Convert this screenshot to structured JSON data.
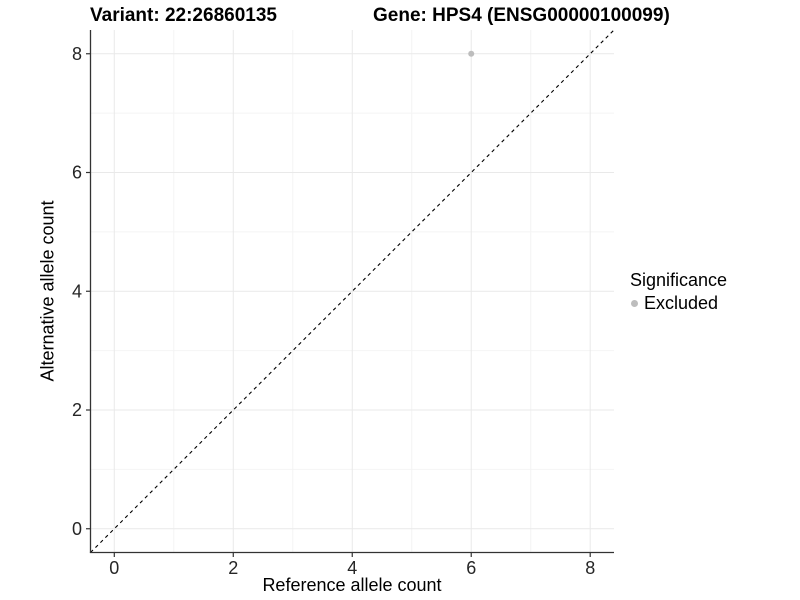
{
  "chart_data": {
    "type": "scatter",
    "titles": [
      "Variant: 22:26860135",
      "Gene: HPS4 (ENSG00000100099)"
    ],
    "xlabel": "Reference allele count",
    "ylabel": "Alternative allele count",
    "xlim": [
      -0.4,
      8.4
    ],
    "ylim": [
      -0.4,
      8.4
    ],
    "xticks": [
      0,
      2,
      4,
      6,
      8
    ],
    "yticks": [
      0,
      2,
      4,
      6,
      8
    ],
    "minor_xticks": [
      1,
      3,
      5,
      7
    ],
    "minor_yticks": [
      1,
      3,
      5,
      7
    ],
    "grid": "major+minor",
    "reference_line": {
      "type": "identity",
      "style": "dashed",
      "color": "#000000",
      "from": [
        -0.4,
        -0.4
      ],
      "to": [
        8.4,
        8.4
      ]
    },
    "series": [
      {
        "name": "Excluded",
        "color": "#bdbdbd",
        "points": [
          [
            6,
            8
          ]
        ]
      }
    ],
    "legend": {
      "position": "right",
      "title": "Significance",
      "items": [
        {
          "label": "Excluded",
          "color": "#bdbdbd",
          "marker": "dot-icon"
        }
      ]
    },
    "colors": {
      "background": "#ffffff",
      "grid_major": "#e9e9e9",
      "grid_minor": "#f4f4f4",
      "axis": "#333333",
      "tick_text": "#262626",
      "point": "#bdbdbd",
      "dashed_line": "#000000"
    }
  }
}
